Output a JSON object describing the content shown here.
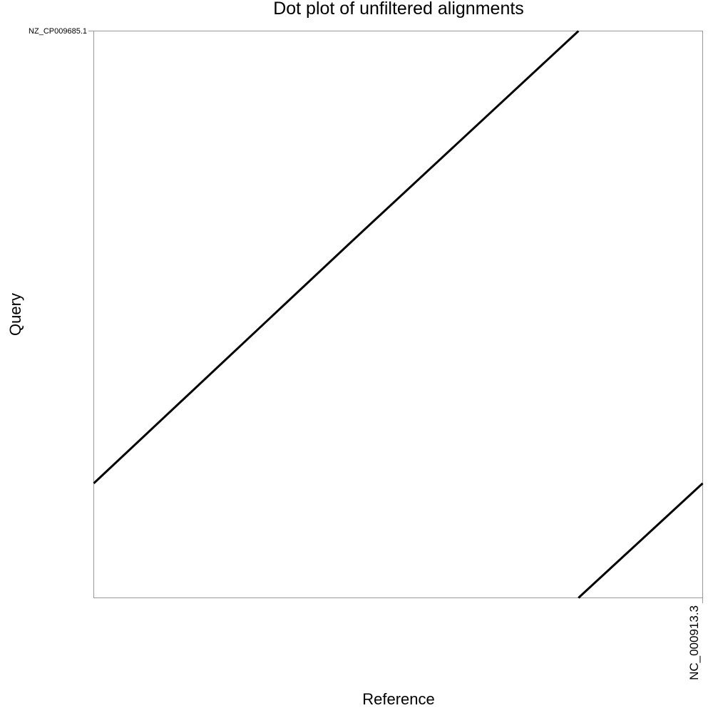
{
  "chart_data": {
    "type": "line",
    "title": "Dot plot of unfiltered alignments",
    "xlabel": "Reference",
    "ylabel": "Query",
    "x_tick_labels": [
      "NC_000913.3"
    ],
    "y_tick_labels": [
      "NZ_CP009685.1"
    ],
    "xlim": [
      0,
      1
    ],
    "ylim": [
      0,
      1
    ],
    "grid": false,
    "legend": "none",
    "series": [
      {
        "points": [
          [
            0.0,
            0.202
          ],
          [
            0.425,
            0.63
          ]
        ]
      },
      {
        "points": [
          [
            0.425,
            0.63
          ],
          [
            0.796,
            1.0
          ]
        ]
      },
      {
        "points": [
          [
            0.796,
            0.0
          ],
          [
            1.0,
            0.202
          ]
        ]
      }
    ],
    "colors": {
      "line": "#000000",
      "frame": "#999999",
      "background": "#ffffff"
    }
  }
}
